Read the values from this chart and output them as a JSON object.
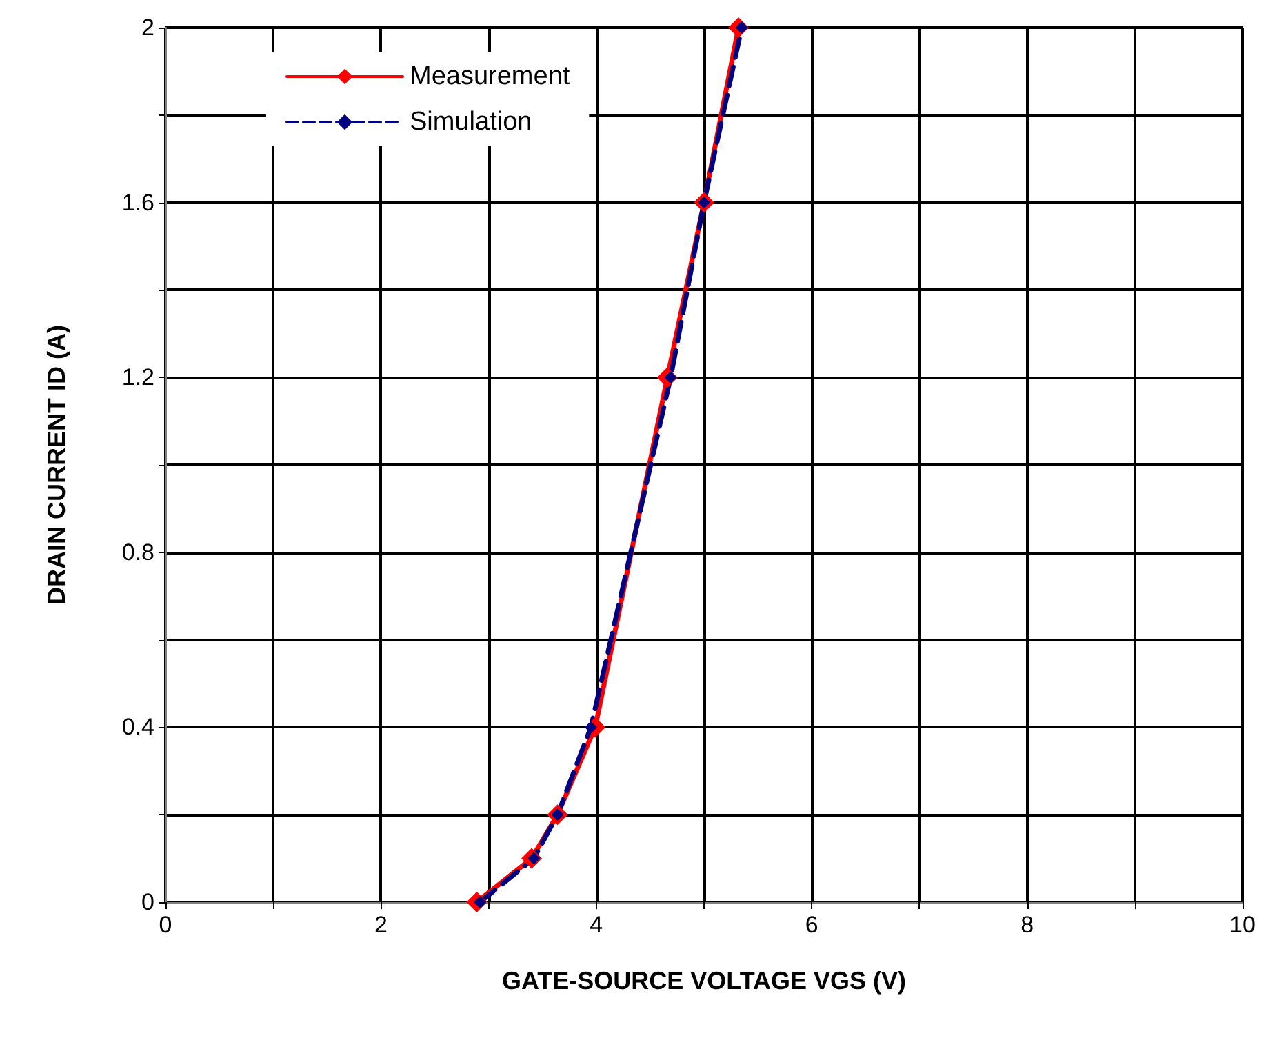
{
  "chart_data": {
    "type": "line",
    "xlabel": "GATE-SOURCE VOLTAGE VGS (V)",
    "ylabel": "DRAIN CURRENT ID (A)",
    "xlim": [
      0,
      10
    ],
    "xticks": [
      0,
      {
        "value": 1,
        "label": null
      },
      2,
      {
        "value": 3,
        "label": null
      },
      4,
      {
        "value": 5,
        "label": null
      },
      6,
      {
        "value": 7,
        "label": null
      },
      8,
      {
        "value": 9,
        "label": null
      },
      10
    ],
    "ylim": [
      0,
      2
    ],
    "yticks": [
      0,
      {
        "value": 0.2,
        "label": null
      },
      0.4,
      {
        "value": 0.6,
        "label": null
      },
      0.8,
      {
        "value": 1.0,
        "label": null
      },
      1.2,
      {
        "value": 1.4,
        "label": null
      },
      1.6,
      {
        "value": 1.8,
        "label": null
      },
      2
    ],
    "grid": true,
    "legend": "top left",
    "marker": "diamond",
    "series": [
      {
        "name": "Measurement",
        "color": "#ff0000",
        "line_style": "solid",
        "x": [
          2.89,
          3.4,
          3.64,
          3.99,
          4.66,
          5.0,
          5.32
        ],
        "values": [
          0,
          0.1,
          0.2,
          0.4,
          1.2,
          1.6,
          2.0
        ]
      },
      {
        "name": "Simulation",
        "color": "#000080",
        "line_style": "dashed",
        "x": [
          2.92,
          3.42,
          3.64,
          3.95,
          4.69,
          5.0,
          5.35
        ],
        "values": [
          0,
          0.1,
          0.2,
          0.4,
          1.2,
          1.6,
          2.0
        ]
      }
    ]
  }
}
